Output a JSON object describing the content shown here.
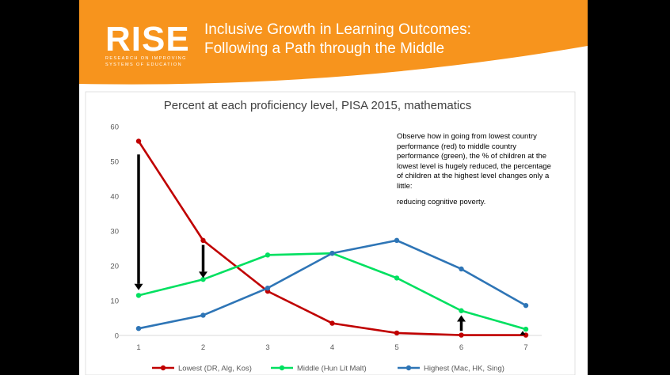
{
  "slide": {
    "logo": {
      "word": "RISE",
      "subtitle_line1": "Research on Improving",
      "subtitle_line2": "Systems of Education"
    },
    "title_line1": "Inclusive Growth in Learning Outcomes:",
    "title_line2": "Following a Path through the Middle",
    "colors": {
      "banner": "#F7941D",
      "background": "#000000"
    }
  },
  "annotation": {
    "paragraph": "Observe how in going from lowest country performance (red) to middle country performance (green), the % of children at the lowest level is hugely reduced, the percentage of children at the highest level changes only a little:",
    "conclusion": "reducing cognitive poverty."
  },
  "chart_data": {
    "type": "line",
    "title": "Percent at each proficiency level, PISA 2015, mathematics",
    "x": [
      1,
      2,
      3,
      4,
      5,
      6,
      7
    ],
    "ylim": [
      0,
      60
    ],
    "yticks": [
      0,
      10,
      20,
      30,
      40,
      50,
      60
    ],
    "series": [
      {
        "name": "Lowest (DR, Alg, Kos)",
        "color": "#C00000",
        "values": [
          55.8,
          27.3,
          12.7,
          3.5,
          0.7,
          0.1,
          0.1
        ]
      },
      {
        "name": "Middle (Hun Lit Malt)",
        "color": "#00E060",
        "values": [
          11.5,
          16.1,
          23.1,
          23.6,
          16.5,
          7.1,
          1.8
        ]
      },
      {
        "name": "Highest (Mac, HK, Sing)",
        "color": "#2E75B6",
        "values": [
          2.0,
          5.8,
          13.6,
          23.6,
          27.3,
          19.1,
          8.6
        ]
      }
    ],
    "arrows": [
      {
        "x": 1,
        "from": 52,
        "to": 13,
        "direction": "down"
      },
      {
        "x": 2,
        "from": 26,
        "to": 16.5,
        "direction": "down"
      },
      {
        "x": 6,
        "from": 1.3,
        "to": 5.8,
        "direction": "up"
      },
      {
        "x": 7,
        "from": 0.6,
        "to": 1.3,
        "direction": "up"
      }
    ]
  }
}
